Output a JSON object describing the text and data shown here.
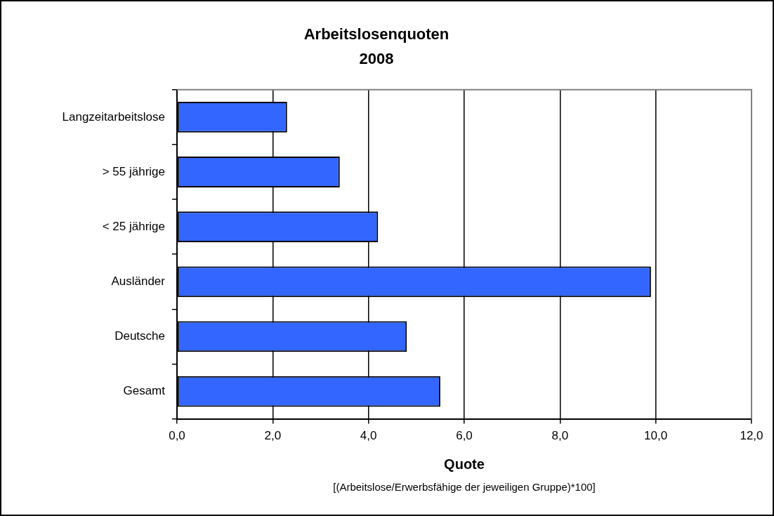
{
  "chart_data": {
    "type": "bar",
    "orientation": "horizontal",
    "title": "Arbeitslosenquoten",
    "subtitle": "2008",
    "xlabel": "Quote",
    "annotations": [
      "[(Arbeitslose/Erwerbsfähige der jeweiligen Gruppe)*100]"
    ],
    "categories": [
      "Langzeitarbeitslose",
      "> 55 jährige",
      "< 25 jährige",
      "Ausländer",
      "Deutsche",
      "Gesamt"
    ],
    "values": [
      2.3,
      3.4,
      4.2,
      9.9,
      4.8,
      5.5
    ],
    "color": "#3366ff",
    "xlim": [
      0,
      12
    ],
    "xticks": [
      {
        "value": 0,
        "label": "0,0"
      },
      {
        "value": 2,
        "label": "2,0"
      },
      {
        "value": 4,
        "label": "4,0"
      },
      {
        "value": 6,
        "label": "6,0"
      },
      {
        "value": 8,
        "label": "8,0"
      },
      {
        "value": 10,
        "label": "10,0"
      },
      {
        "value": 12,
        "label": "12,0"
      }
    ],
    "grid": "x",
    "legend": false
  }
}
